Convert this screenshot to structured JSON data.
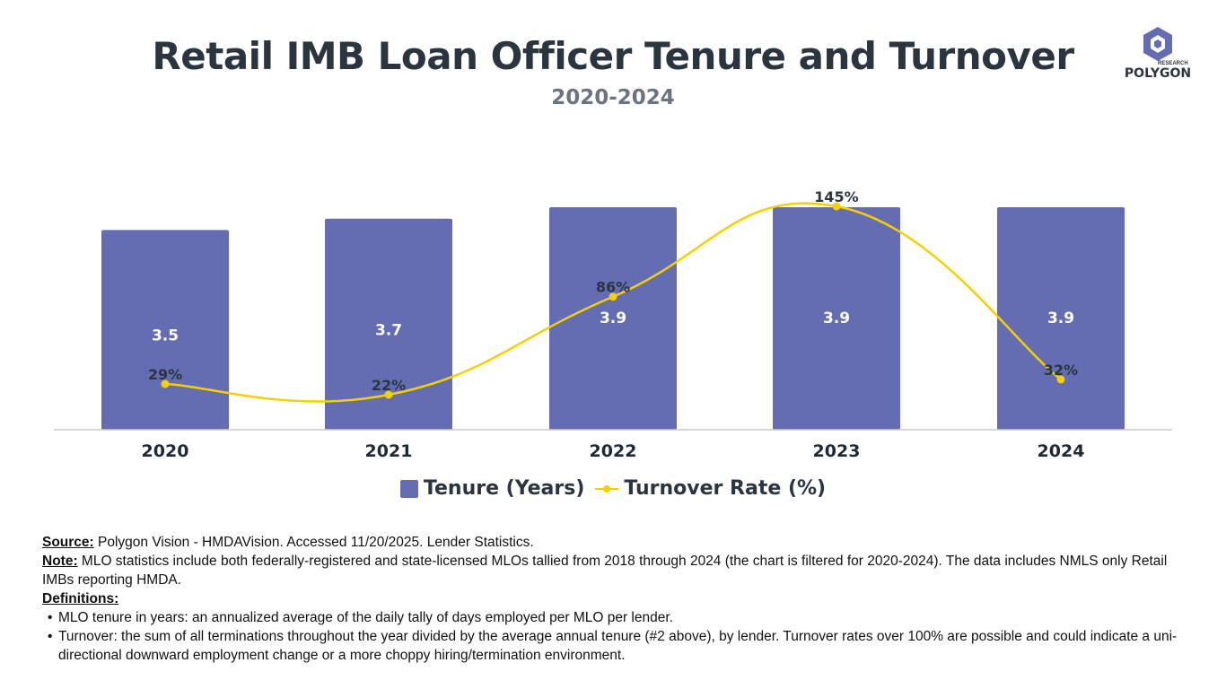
{
  "header": {
    "title": "Retail IMB Loan Officer Tenure and Turnover",
    "subtitle": "2020-2024",
    "logo_text": "POLYGON",
    "logo_subtext": "RESEARCH"
  },
  "chart_data": {
    "type": "bar",
    "title": "Retail IMB Loan Officer Tenure and Turnover",
    "subtitle": "2020-2024",
    "categories": [
      "2020",
      "2021",
      "2022",
      "2023",
      "2024"
    ],
    "series": [
      {
        "name": "Tenure (Years)",
        "type": "bar",
        "values": [
          3.5,
          3.7,
          3.9,
          3.9,
          3.9
        ],
        "labels": [
          "3.5",
          "3.7",
          "3.9",
          "3.9",
          "3.9"
        ],
        "color": "#646cb2"
      },
      {
        "name": "Turnover Rate (%)",
        "type": "line",
        "values": [
          29,
          22,
          86,
          145,
          32
        ],
        "labels": [
          "29%",
          "22%",
          "86%",
          "145%",
          "32%"
        ],
        "color": "#f5d000"
      }
    ],
    "legend_position": "bottom",
    "grid": false
  },
  "legend": {
    "bar_label": "Tenure (Years)",
    "line_label": "Turnover Rate (%)"
  },
  "notes": {
    "source_label": "Source:",
    "source_text": " Polygon Vision - HMDAVision. Accessed 11/20/2025. Lender Statistics.",
    "note_label": "Note:",
    "note_text": " MLO statistics include both federally-registered and state-licensed MLOs tallied from 2018 through 2024 (the chart is filtered for 2020-2024). The data includes NMLS only Retail IMBs reporting HMDA.",
    "definitions_label": "Definitions:",
    "definitions": [
      "MLO tenure in years: an annualized average of the daily tally of days employed per MLO per lender.",
      "Turnover: the sum of all terminations throughout the year divided by the average annual tenure (#2 above), by lender. Turnover rates over 100% are possible and could indicate a uni-directional downward employment change or a more choppy hiring/termination environment."
    ]
  }
}
